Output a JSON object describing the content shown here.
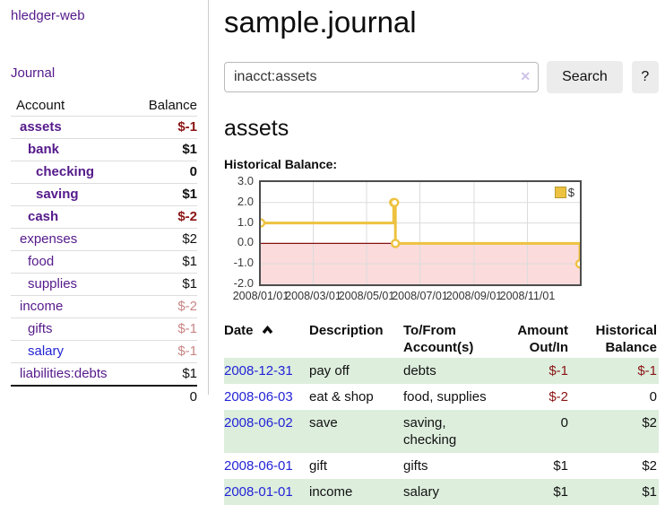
{
  "sidebar": {
    "brand": "hledger-web",
    "journal_link": "Journal",
    "accounts": {
      "headers": {
        "account": "Account",
        "balance": "Balance"
      },
      "rows": [
        {
          "name": "assets",
          "level": 1,
          "bold": true,
          "color": "purple",
          "balance": "$-1",
          "bstyle": "neg-strong"
        },
        {
          "name": "bank",
          "level": 2,
          "bold": true,
          "color": "purple",
          "balance": "$1",
          "bstyle": "strong"
        },
        {
          "name": "checking",
          "level": 3,
          "bold": true,
          "color": "purple",
          "balance": "0",
          "bstyle": "strong"
        },
        {
          "name": "saving",
          "level": 3,
          "bold": true,
          "color": "purple",
          "balance": "$1",
          "bstyle": "strong"
        },
        {
          "name": "cash",
          "level": 2,
          "bold": true,
          "color": "purple",
          "balance": "$-2",
          "bstyle": "neg-strong"
        },
        {
          "name": "expenses",
          "level": 1,
          "bold": false,
          "color": "purple",
          "balance": "$2",
          "bstyle": ""
        },
        {
          "name": "food",
          "level": 2,
          "bold": false,
          "color": "purple",
          "balance": "$1",
          "bstyle": ""
        },
        {
          "name": "supplies",
          "level": 2,
          "bold": false,
          "color": "purple",
          "balance": "$1",
          "bstyle": ""
        },
        {
          "name": "income",
          "level": 1,
          "bold": false,
          "color": "purple",
          "balance": "$-2",
          "bstyle": "neg-soft"
        },
        {
          "name": "gifts",
          "level": 2,
          "bold": false,
          "color": "purple",
          "balance": "$-1",
          "bstyle": "neg-soft"
        },
        {
          "name": "salary",
          "level": 2,
          "bold": false,
          "color": "blue",
          "balance": "$-1",
          "bstyle": "neg-soft"
        },
        {
          "name": "liabilities:debts",
          "level": 1,
          "bold": false,
          "color": "purple",
          "balance": "$1",
          "bstyle": ""
        }
      ],
      "total": "0"
    }
  },
  "main": {
    "title": "sample.journal",
    "search": {
      "value": "inacct:assets",
      "clear_icon": "✕",
      "button_label": "Search",
      "help_label": "?"
    },
    "account_heading": "assets",
    "chart_label": "Historical Balance:",
    "register": {
      "headers": {
        "date": "Date",
        "description": "Description",
        "tofrom_l1": "To/From",
        "tofrom_l2": "Account(s)",
        "amount_l1": "Amount",
        "amount_l2": "Out/In",
        "hist_l1": "Historical",
        "hist_l2": "Balance"
      },
      "rows": [
        {
          "date": "2008-12-31",
          "description": "pay off",
          "accounts": "debts",
          "amount": "$-1",
          "amount_neg": true,
          "balance": "$-1",
          "balance_neg": true
        },
        {
          "date": "2008-06-03",
          "description": "eat & shop",
          "accounts": "food, supplies",
          "amount": "$-2",
          "amount_neg": true,
          "balance": "0",
          "balance_neg": false
        },
        {
          "date": "2008-06-02",
          "description": "save",
          "accounts": "saving, checking",
          "amount": "0",
          "amount_neg": false,
          "balance": "$2",
          "balance_neg": false
        },
        {
          "date": "2008-06-01",
          "description": "gift",
          "accounts": "gifts",
          "amount": "$1",
          "amount_neg": false,
          "balance": "$2",
          "balance_neg": false
        },
        {
          "date": "2008-01-01",
          "description": "income",
          "accounts": "salary",
          "amount": "$1",
          "amount_neg": false,
          "balance": "$1",
          "balance_neg": false
        }
      ]
    }
  },
  "chart_data": {
    "type": "line",
    "style": "step",
    "title": "Historical Balance",
    "series": [
      {
        "name": "$",
        "color": "#edc240",
        "dates": [
          "2008-01-01",
          "2008-06-01",
          "2008-06-02",
          "2008-06-03",
          "2008-12-31"
        ],
        "days": [
          0,
          152,
          153,
          154,
          365
        ],
        "values": [
          1,
          2,
          2,
          0,
          -1
        ]
      }
    ],
    "ylim": [
      -2,
      3
    ],
    "xlim_days": [
      0,
      365
    ],
    "yticks": [
      {
        "v": 3,
        "label": "3.0"
      },
      {
        "v": 2,
        "label": "2.0"
      },
      {
        "v": 1,
        "label": "1.0"
      },
      {
        "v": 0,
        "label": "0.0"
      },
      {
        "v": -1,
        "label": "-1.0"
      },
      {
        "v": -2,
        "label": "-2.0"
      }
    ],
    "xticks": [
      {
        "day": 0,
        "label": "2008/01/01"
      },
      {
        "day": 60,
        "label": "2008/03/01"
      },
      {
        "day": 121,
        "label": "2008/05/01"
      },
      {
        "day": 182,
        "label": "2008/07/01"
      },
      {
        "day": 244,
        "label": "2008/09/01"
      },
      {
        "day": 305,
        "label": "2008/11/01"
      }
    ],
    "legend_label": "$",
    "legend_position": "top-right",
    "grid": true,
    "negative_region_fill": "#fbdbdb",
    "zero_line_color": "#871111",
    "grid_color": "#dcdcdc",
    "plot_border_color": "#4d4d4d"
  },
  "colors": {
    "purple": "#551a8b",
    "blue": "#2323d6",
    "neg_strong": "#8b1414",
    "neg_soft": "#c98585",
    "row_stripe": "#ddeedd",
    "button_bg": "#ececec",
    "accent_gold": "#edc240"
  }
}
